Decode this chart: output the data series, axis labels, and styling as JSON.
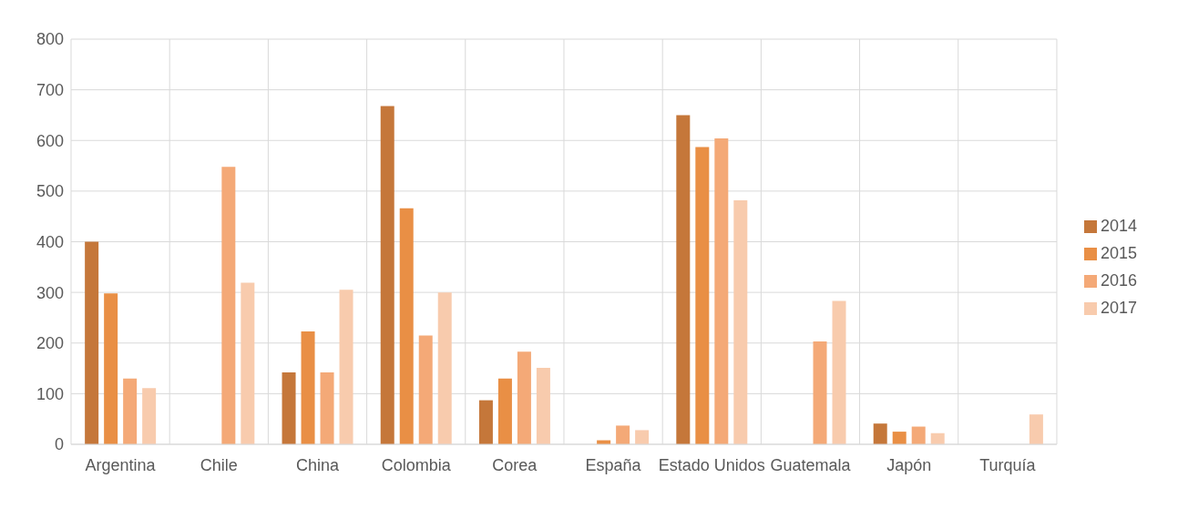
{
  "chart_data": {
    "type": "bar",
    "categories": [
      "Argentina",
      "Chile",
      "China",
      "Colombia",
      "Corea",
      "España",
      "Estado Unidos",
      "Guatemala",
      "Japón",
      "Turquía"
    ],
    "series": [
      {
        "name": "2014",
        "color": "#c5773a",
        "values": [
          400,
          null,
          142,
          668,
          87,
          null,
          650,
          null,
          41,
          null
        ]
      },
      {
        "name": "2015",
        "color": "#e98f45",
        "values": [
          298,
          null,
          223,
          466,
          130,
          8,
          587,
          null,
          25,
          null
        ]
      },
      {
        "name": "2016",
        "color": "#f4a977",
        "values": [
          130,
          548,
          142,
          215,
          183,
          37,
          604,
          203,
          35,
          null
        ]
      },
      {
        "name": "2017",
        "color": "#f8cbad",
        "values": [
          111,
          319,
          305,
          300,
          151,
          28,
          482,
          283,
          22,
          59
        ]
      }
    ],
    "ylim": [
      0,
      800
    ],
    "yticks": [
      0,
      100,
      200,
      300,
      400,
      500,
      600,
      700,
      800
    ],
    "grid": true,
    "legend": "right"
  }
}
